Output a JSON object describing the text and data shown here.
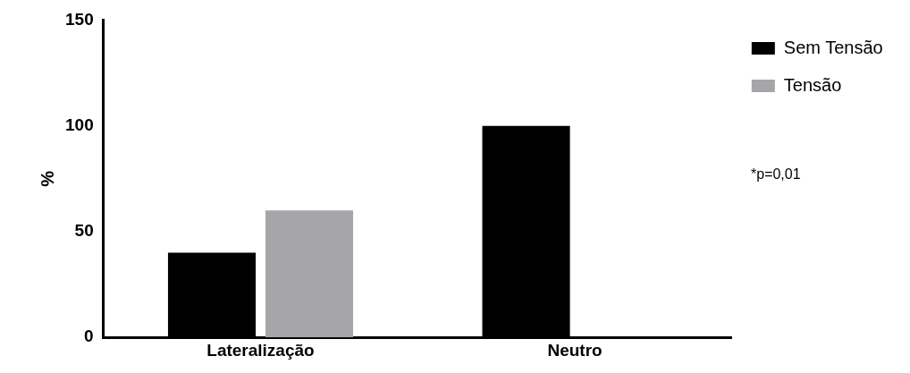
{
  "chart_data": {
    "type": "bar",
    "ylabel": "%",
    "categories": [
      "Lateralização",
      "Neutro"
    ],
    "series": [
      {
        "name": "Sem Tensão",
        "color": "#000000",
        "values": [
          40,
          100
        ]
      },
      {
        "name": "Tensão",
        "color": "#a6a6aa",
        "values": [
          60,
          0
        ]
      }
    ],
    "ylim": [
      0,
      150
    ],
    "yticks": [
      0,
      50,
      100,
      150
    ],
    "grid": false,
    "legend": "top right",
    "annotations": [
      "*p=0,01"
    ]
  }
}
